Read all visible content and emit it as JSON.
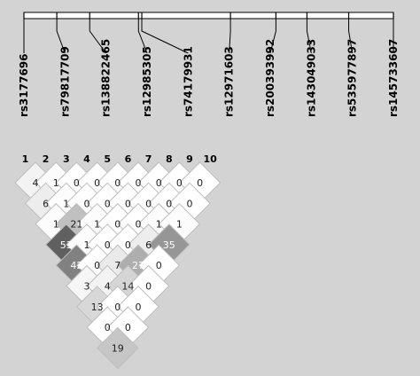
{
  "snps": [
    {
      "index": "1",
      "id": "rs3177696",
      "pos": 0.0
    },
    {
      "index": "2",
      "id": "rs79817709",
      "pos": 0.089
    },
    {
      "index": "3",
      "id": "rs138822465",
      "pos": 0.178
    },
    {
      "index": "4",
      "id": "rs12985305",
      "pos": 0.31
    },
    {
      "index": "5",
      "id": "rs74179931",
      "pos": 0.319
    },
    {
      "index": "6",
      "id": "rs12971603",
      "pos": 0.559
    },
    {
      "index": "7",
      "id": "rs200393992",
      "pos": 0.682
    },
    {
      "index": "8",
      "id": "rs143049033",
      "pos": 0.766
    },
    {
      "index": "9",
      "id": "rs535977897",
      "pos": 0.879
    },
    {
      "index": "10",
      "id": "rs145733607",
      "pos": 1.0
    }
  ],
  "ld_values": [
    [
      "4",
      "1",
      "0",
      "0",
      "0",
      "0",
      "0",
      "0",
      "0"
    ],
    [
      "6",
      "1",
      "0",
      "0",
      "0",
      "0",
      "0",
      "0"
    ],
    [
      "1",
      "21",
      "1",
      "0",
      "0",
      "1",
      "1"
    ],
    [
      "53",
      "1",
      "0",
      "0",
      "6",
      "35"
    ],
    [
      "42",
      "0",
      "7",
      "27",
      "0"
    ],
    [
      "3",
      "4",
      "14",
      "0"
    ],
    [
      "13",
      "0",
      "0"
    ],
    [
      "0",
      "0"
    ],
    [
      "19"
    ]
  ],
  "colors": {
    "background": "#d3d3d3",
    "zero_cell": "#ffffff",
    "max_cell": "#606060",
    "light_text": "#222222",
    "dark_text": "#ffffff"
  }
}
